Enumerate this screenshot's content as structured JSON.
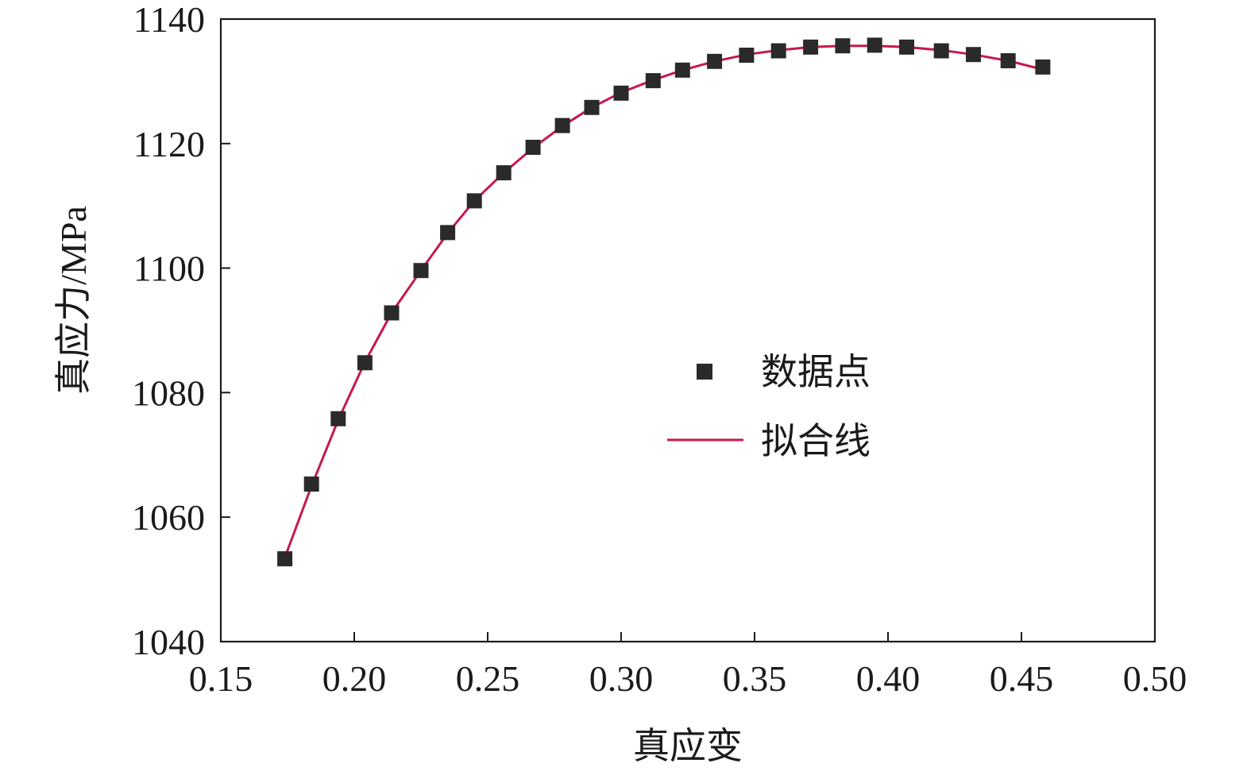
{
  "chart_data": {
    "type": "scatter",
    "title": "",
    "xlabel": "真应变",
    "ylabel": "真应力/MPa",
    "xlim": [
      0.15,
      0.5
    ],
    "ylim": [
      1040,
      1140
    ],
    "xticks": [
      "0.15",
      "0.20",
      "0.25",
      "0.30",
      "0.35",
      "0.40",
      "0.45",
      "0.50"
    ],
    "yticks": [
      "1040",
      "1060",
      "1080",
      "1100",
      "1120",
      "1140"
    ],
    "grid": false,
    "legend_position": "center-right",
    "series": [
      {
        "name": "数据点",
        "kind": "scatter",
        "marker": "square",
        "color": "#2a2a2a",
        "x": [
          0.174,
          0.184,
          0.194,
          0.204,
          0.214,
          0.225,
          0.235,
          0.245,
          0.256,
          0.267,
          0.278,
          0.289,
          0.3,
          0.312,
          0.323,
          0.335,
          0.347,
          0.359,
          0.371,
          0.383,
          0.395,
          0.407,
          0.42,
          0.432,
          0.445,
          0.458
        ],
        "y": [
          1053.3,
          1065.3,
          1075.8,
          1084.8,
          1092.8,
          1099.6,
          1105.7,
          1110.8,
          1115.3,
          1119.4,
          1122.9,
          1125.8,
          1128.1,
          1130.1,
          1131.8,
          1133.2,
          1134.2,
          1134.9,
          1135.5,
          1135.7,
          1135.8,
          1135.5,
          1134.9,
          1134.3,
          1133.3,
          1132.3
        ]
      },
      {
        "name": "拟合线",
        "kind": "line",
        "color": "#c8184a",
        "x": [
          0.174,
          0.184,
          0.194,
          0.204,
          0.214,
          0.225,
          0.235,
          0.245,
          0.256,
          0.267,
          0.278,
          0.289,
          0.3,
          0.312,
          0.323,
          0.335,
          0.347,
          0.359,
          0.371,
          0.383,
          0.395,
          0.407,
          0.42,
          0.432,
          0.445,
          0.458
        ],
        "y": [
          1053.5,
          1065.0,
          1075.6,
          1084.9,
          1092.8,
          1099.6,
          1105.6,
          1110.8,
          1115.3,
          1119.3,
          1122.8,
          1125.8,
          1128.2,
          1130.2,
          1131.8,
          1133.2,
          1134.3,
          1135.0,
          1135.5,
          1135.7,
          1135.7,
          1135.5,
          1135.0,
          1134.3,
          1133.3,
          1131.9
        ]
      }
    ]
  }
}
